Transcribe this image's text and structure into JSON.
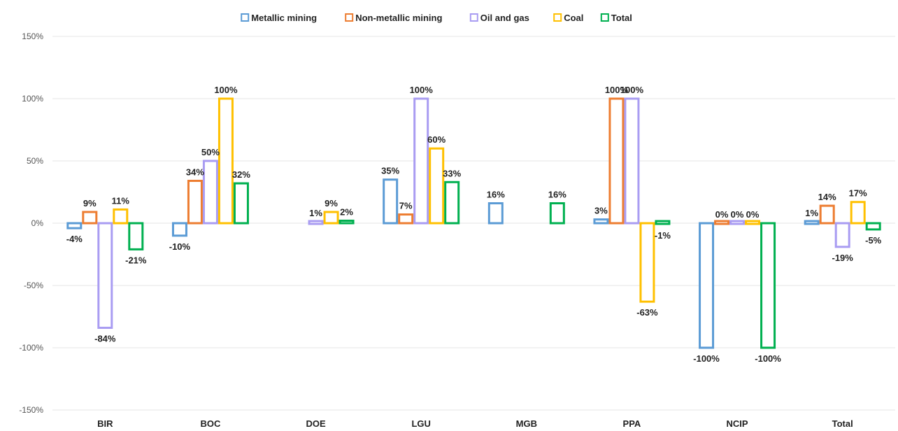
{
  "chart_data": {
    "type": "bar",
    "categories": [
      "BIR",
      "BOC",
      "DOE",
      "LGU",
      "MGB",
      "PPA",
      "NCIP",
      "Total"
    ],
    "series": [
      {
        "name": "Metallic mining",
        "color": "#5b9bd5",
        "values": [
          -4,
          -10,
          null,
          35,
          16,
          3,
          -100,
          1
        ],
        "labels": [
          "-4%",
          "-10%",
          "",
          "35%",
          "16%",
          "3%",
          "-100%",
          "1%"
        ]
      },
      {
        "name": "Non-metallic mining",
        "color": "#ed7d31",
        "values": [
          9,
          34,
          null,
          7,
          null,
          100,
          0,
          14
        ],
        "labels": [
          "9%",
          "34%",
          "",
          "7%",
          "",
          "100%",
          "0%",
          "14%"
        ]
      },
      {
        "name": "Oil and gas",
        "color": "#a99cf2",
        "values": [
          -84,
          50,
          1,
          100,
          null,
          100,
          0,
          -19
        ],
        "labels": [
          "-84%",
          "50%",
          "1%",
          "100%",
          "",
          "100%",
          "0%",
          "-19%"
        ]
      },
      {
        "name": "Coal",
        "color": "#ffc000",
        "values": [
          11,
          100,
          9,
          60,
          null,
          -63,
          0,
          17
        ],
        "labels": [
          "11%",
          "100%",
          "9%",
          "60%",
          "",
          "-63%",
          "0%",
          "17%"
        ]
      },
      {
        "name": "Total",
        "color": "#00b050",
        "values": [
          -21,
          32,
          2,
          33,
          16,
          -1,
          -100,
          -5
        ],
        "labels": [
          "-21%",
          "32%",
          "2%",
          "33%",
          "16%",
          "-1%",
          "-100%",
          "-5%"
        ]
      }
    ],
    "ylim": [
      -150,
      150
    ],
    "yticks": [
      150,
      100,
      50,
      0,
      -50,
      -100,
      -150
    ],
    "ytick_labels": [
      "150%",
      "100%",
      "50%",
      "0%",
      "-50%",
      "-100%",
      "-150%"
    ],
    "grid": true,
    "legend_position": "top-center",
    "xlabel": "",
    "ylabel": ""
  }
}
